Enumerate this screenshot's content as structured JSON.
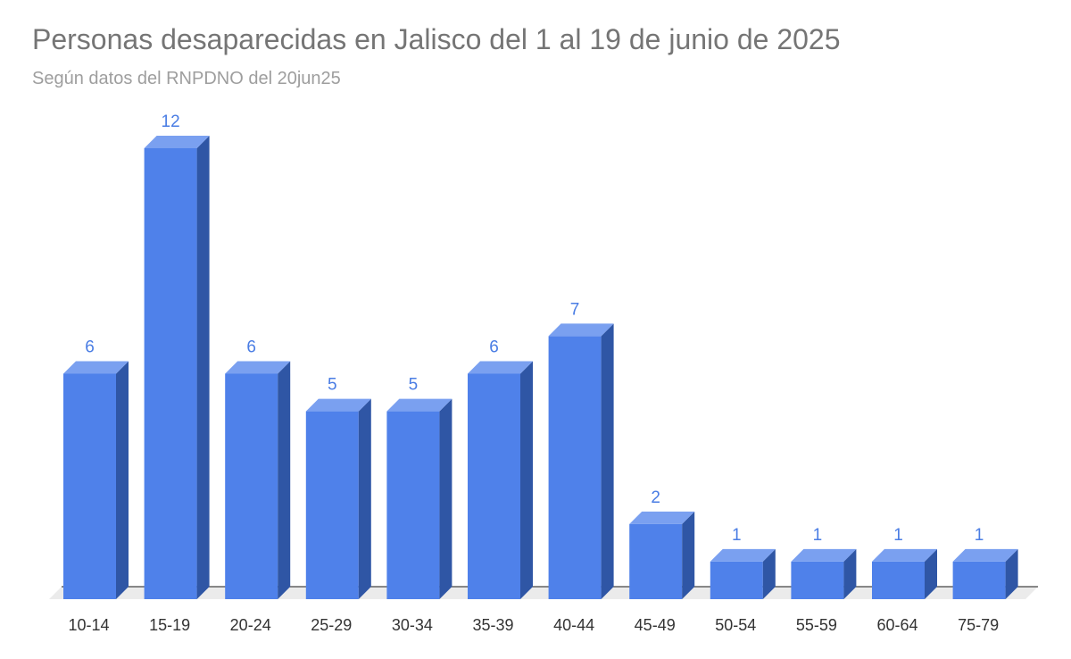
{
  "chart_data": {
    "type": "bar",
    "title": "Personas desaparecidas en Jalisco del 1 al 19 de junio de 2025",
    "subtitle": "Según datos del RNPDNO del 20jun25",
    "categories": [
      "10-14",
      "15-19",
      "20-24",
      "25-29",
      "30-34",
      "35-39",
      "40-44",
      "45-49",
      "50-54",
      "55-59",
      "60-64",
      "75-79"
    ],
    "values": [
      6,
      12,
      6,
      5,
      5,
      6,
      7,
      2,
      1,
      1,
      1,
      1
    ],
    "xlabel": "",
    "ylabel": "",
    "ylim": [
      0,
      12
    ],
    "grid": false,
    "legend": "none",
    "data_labels": true,
    "style": "3d",
    "colors": {
      "bar_front": "#4f81ea",
      "bar_top": "#7aa0f0",
      "bar_side": "#2f56a5",
      "data_label": "#4a7de4",
      "tick_label": "#333333",
      "floor": "#ebebeb",
      "baseline": "#444444"
    }
  }
}
